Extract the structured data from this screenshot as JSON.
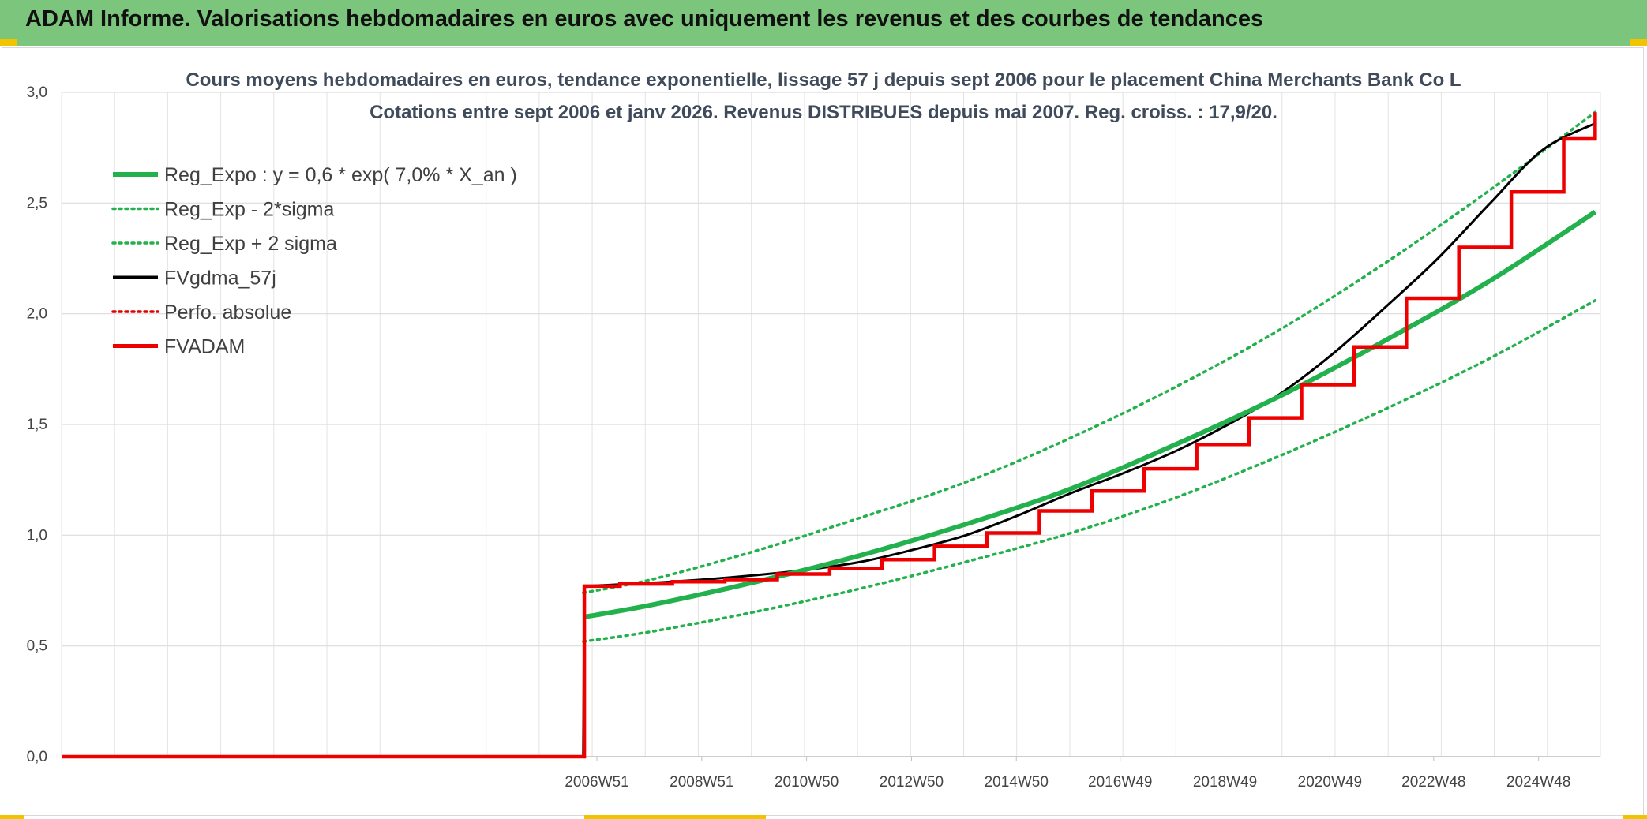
{
  "header": {
    "title": "ADAM Informe. Valorisations hebdomadaires en euros avec uniquement les revenus et des courbes de tendances"
  },
  "chart_data": {
    "type": "line",
    "title": "Cours moyens hebdomadaires en euros, tendance exponentielle, lissage 57 j depuis sept 2006 pour le placement China Merchants Bank Co L",
    "subtitle": "Cotations entre sept 2006 et janv 2026. Revenus DISTRIBUES depuis mai 2007. Reg. croiss. : 17,9/20.",
    "xlabel": "",
    "ylabel": "",
    "ylim": [
      0,
      3.0
    ],
    "yticks": [
      "0,0",
      "0,5",
      "1,0",
      "1,5",
      "2,0",
      "2,5",
      "3,0"
    ],
    "xlim": [
      1996.75,
      2026.1
    ],
    "xticks": [
      {
        "label": "2006W51",
        "x": 2006.96
      },
      {
        "label": "2008W51",
        "x": 2008.96
      },
      {
        "label": "2010W50",
        "x": 2010.96
      },
      {
        "label": "2012W50",
        "x": 2012.96
      },
      {
        "label": "2014W50",
        "x": 2014.96
      },
      {
        "label": "2016W49",
        "x": 2016.94
      },
      {
        "label": "2018W49",
        "x": 2018.94
      },
      {
        "label": "2020W49",
        "x": 2020.94
      },
      {
        "label": "2022W48",
        "x": 2022.92
      },
      {
        "label": "2024W48",
        "x": 2024.92
      }
    ],
    "grid": true,
    "legend_position": "top-left",
    "series": [
      {
        "name": "Reg_Expo : y = 0,6 * exp( 7,0% *  X_an )",
        "color": "#22b14c",
        "style": "solid",
        "x": [
          2006.7,
          2008,
          2010,
          2012,
          2014,
          2016,
          2018,
          2020,
          2022,
          2024,
          2026
        ],
        "y": [
          0.63,
          0.685,
          0.79,
          0.91,
          1.05,
          1.21,
          1.41,
          1.63,
          1.88,
          2.15,
          2.46
        ]
      },
      {
        "name": "Reg_Exp - 2*sigma",
        "color": "#22b14c",
        "style": "dotted",
        "x": [
          2006.7,
          2008,
          2010,
          2012,
          2014,
          2016,
          2018,
          2020,
          2022,
          2024,
          2026
        ],
        "y": [
          0.52,
          0.565,
          0.655,
          0.76,
          0.88,
          1.01,
          1.17,
          1.36,
          1.57,
          1.8,
          2.06
        ]
      },
      {
        "name": "Reg_Exp + 2 sigma",
        "color": "#22b14c",
        "style": "dotted",
        "x": [
          2006.7,
          2008,
          2010,
          2012,
          2014,
          2016,
          2018,
          2020,
          2022,
          2024,
          2026
        ],
        "y": [
          0.74,
          0.8,
          0.93,
          1.08,
          1.24,
          1.44,
          1.67,
          1.93,
          2.23,
          2.56,
          2.91
        ]
      },
      {
        "name": "FVgdma_57j",
        "color": "#000000",
        "style": "solid",
        "x": [
          1996.75,
          2006.7,
          2006.72,
          2008,
          2009,
          2010,
          2011,
          2012,
          2013,
          2014,
          2015,
          2016,
          2017,
          2018,
          2019,
          2020,
          2021,
          2022,
          2023,
          2024,
          2025,
          2026
        ],
        "y": [
          0,
          0,
          0.77,
          0.785,
          0.8,
          0.82,
          0.845,
          0.88,
          0.935,
          1.0,
          1.09,
          1.19,
          1.28,
          1.38,
          1.5,
          1.64,
          1.82,
          2.03,
          2.25,
          2.5,
          2.74,
          2.86
        ]
      },
      {
        "name": "Perfo. absolue",
        "color": "#e00000",
        "style": "dotted",
        "x": [],
        "y": []
      },
      {
        "name": "FVADAM",
        "color": "#ee0000",
        "style": "step",
        "x": [
          1996.75,
          2006.7,
          2006.72,
          2007.4,
          2008.4,
          2009.4,
          2010.4,
          2011.4,
          2012.4,
          2013.4,
          2014.4,
          2015.4,
          2016.4,
          2017.4,
          2018.4,
          2019.4,
          2020.4,
          2021.4,
          2022.4,
          2023.4,
          2024.4,
          2025.4,
          2026.0
        ],
        "y": [
          0,
          0,
          0.77,
          0.78,
          0.79,
          0.8,
          0.825,
          0.85,
          0.89,
          0.95,
          1.01,
          1.11,
          1.2,
          1.3,
          1.41,
          1.53,
          1.68,
          1.85,
          2.07,
          2.3,
          2.55,
          2.79,
          2.91
        ]
      }
    ]
  }
}
